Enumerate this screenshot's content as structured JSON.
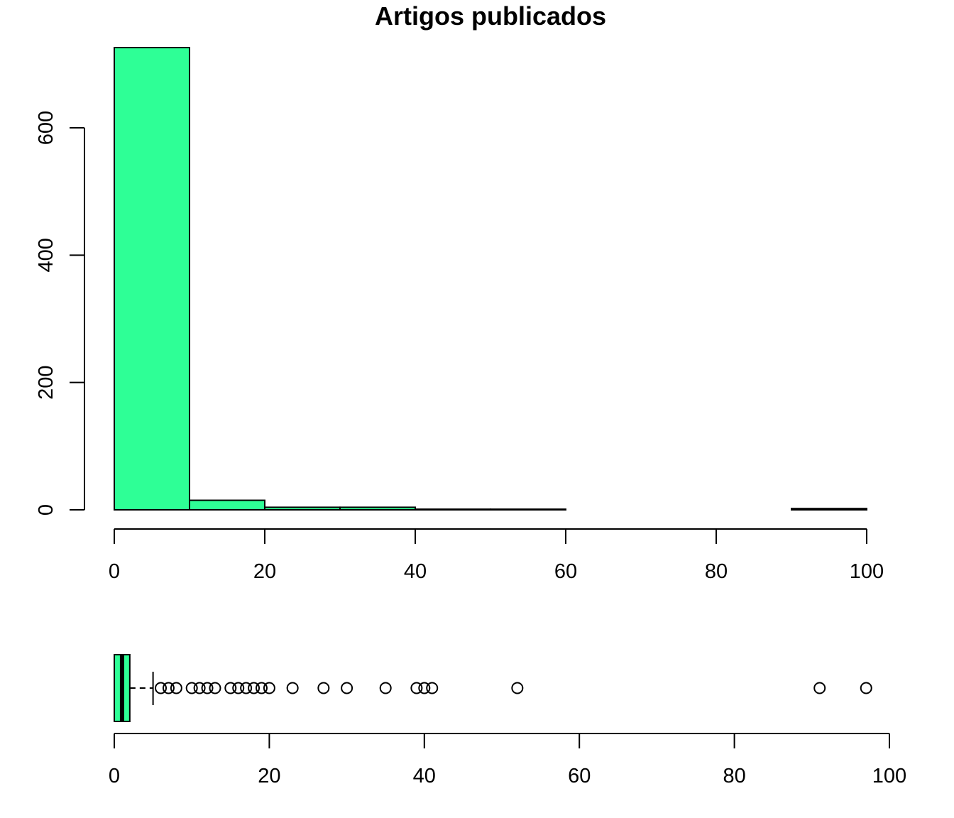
{
  "chart_data": [
    {
      "type": "bar",
      "title": "Artigos publicados",
      "xlabel": "",
      "ylabel": "",
      "bin_edges": [
        0,
        10,
        20,
        30,
        40,
        50,
        60,
        70,
        80,
        90,
        100
      ],
      "values": [
        726,
        15,
        4,
        4,
        1,
        1,
        0,
        0,
        0,
        2
      ],
      "xlim": [
        0,
        100
      ],
      "ylim": [
        0,
        726
      ],
      "x_ticks": [
        "0",
        "20",
        "40",
        "60",
        "80",
        "100"
      ],
      "y_ticks": [
        "0",
        "200",
        "400",
        "600"
      ],
      "grid": false,
      "color": "#2EFF96"
    },
    {
      "type": "boxplot",
      "orientation": "horizontal",
      "xlim": [
        0,
        100
      ],
      "x_ticks": [
        "0",
        "20",
        "40",
        "60",
        "80",
        "100"
      ],
      "q1": 0,
      "median": 1,
      "q3": 2,
      "whisker_low": 0,
      "whisker_high": 5,
      "outliers": [
        6,
        7,
        8,
        10,
        11,
        12,
        13,
        15,
        16,
        17,
        18,
        19,
        20,
        23,
        27,
        30,
        35,
        39,
        40,
        41,
        52,
        91,
        97
      ],
      "color": "#2EFF96"
    }
  ]
}
